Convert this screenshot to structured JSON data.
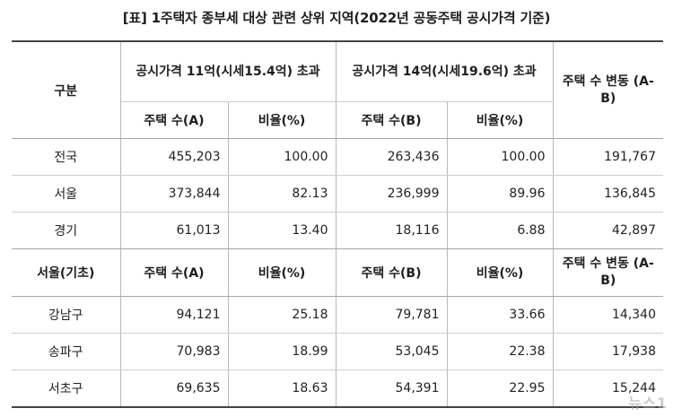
{
  "title": "[표] 1주택자 종부세 대상 관련 상위 지역(2022년 공동주택 공시가격 기준)",
  "header": {
    "region": "구분",
    "group_a": "공시가격 11억(시세15.4억) 초과",
    "group_b": "공시가격 14억(시세19.6억) 초과",
    "change": "주택 수 변동 (A-B)",
    "count_a": "주택 수(A)",
    "ratio_a": "비율(%)",
    "count_b": "주택 수(B)",
    "ratio_b": "비율(%)"
  },
  "national_rows": [
    {
      "region": "전국",
      "count_a": "455,203",
      "ratio_a": "100.00",
      "count_b": "263,436",
      "ratio_b": "100.00",
      "change": "191,767"
    },
    {
      "region": "서울",
      "count_a": "373,844",
      "ratio_a": "82.13",
      "count_b": "236,999",
      "ratio_b": "89.96",
      "change": "136,845"
    },
    {
      "region": "경기",
      "count_a": "61,013",
      "ratio_a": "13.40",
      "count_b": "18,116",
      "ratio_b": "6.88",
      "change": "42,897"
    }
  ],
  "seoul_header": {
    "region": "서울(기초)",
    "count_a": "주택 수(A)",
    "ratio_a": "비율(%)",
    "count_b": "주택 수(B)",
    "ratio_b": "비율(%)",
    "change": "주택 수 변동 (A-B)"
  },
  "seoul_rows": [
    {
      "region": "강남구",
      "count_a": "94,121",
      "ratio_a": "25.18",
      "count_b": "79,781",
      "ratio_b": "33.66",
      "change": "14,340"
    },
    {
      "region": "송파구",
      "count_a": "70,983",
      "ratio_a": "18.99",
      "count_b": "53,045",
      "ratio_b": "22.38",
      "change": "17,938"
    },
    {
      "region": "서초구",
      "count_a": "69,635",
      "ratio_a": "18.63",
      "count_b": "54,391",
      "ratio_b": "22.95",
      "change": "15,244"
    }
  ],
  "watermark": "뉴스1"
}
